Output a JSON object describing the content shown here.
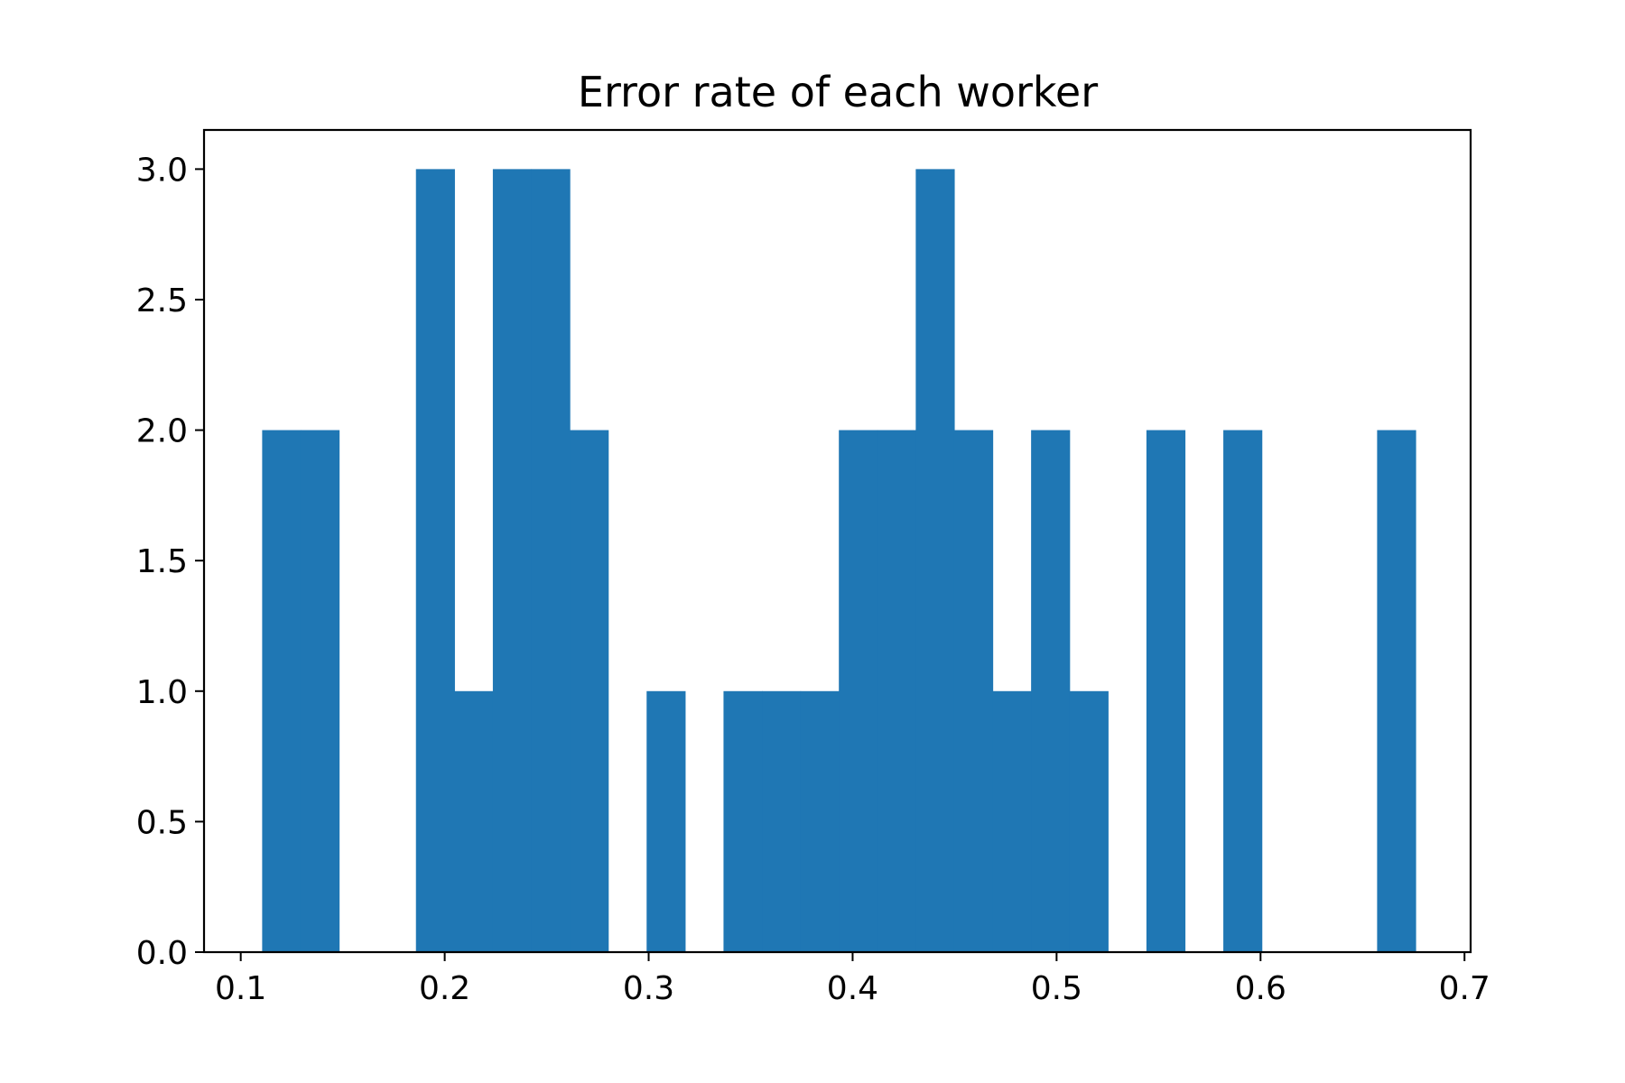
{
  "chart_data": {
    "type": "bar",
    "title": "Error rate of each worker",
    "xlabel": "",
    "ylabel": "",
    "bar_color": "#1f77b4",
    "xlim": [
      0.082,
      0.703
    ],
    "ylim": [
      0,
      3.15
    ],
    "x_ticks": [
      {
        "value": 0.1,
        "label": "0.1"
      },
      {
        "value": 0.2,
        "label": "0.2"
      },
      {
        "value": 0.3,
        "label": "0.3"
      },
      {
        "value": 0.4,
        "label": "0.4"
      },
      {
        "value": 0.5,
        "label": "0.5"
      },
      {
        "value": 0.6,
        "label": "0.6"
      },
      {
        "value": 0.7,
        "label": "0.7"
      }
    ],
    "y_ticks": [
      {
        "value": 0.0,
        "label": "0.0"
      },
      {
        "value": 0.5,
        "label": "0.5"
      },
      {
        "value": 1.0,
        "label": "1.0"
      },
      {
        "value": 1.5,
        "label": "1.5"
      },
      {
        "value": 2.0,
        "label": "2.0"
      },
      {
        "value": 2.5,
        "label": "2.5"
      },
      {
        "value": 3.0,
        "label": "3.0"
      }
    ],
    "bin_start": 0.1105,
    "bin_width": 0.01885,
    "counts": [
      2,
      2,
      0,
      0,
      3,
      1,
      3,
      3,
      2,
      0,
      1,
      0,
      1,
      1,
      1,
      2,
      2,
      3,
      2,
      1,
      2,
      1,
      0,
      2,
      0,
      2,
      0,
      0,
      0,
      2
    ]
  }
}
